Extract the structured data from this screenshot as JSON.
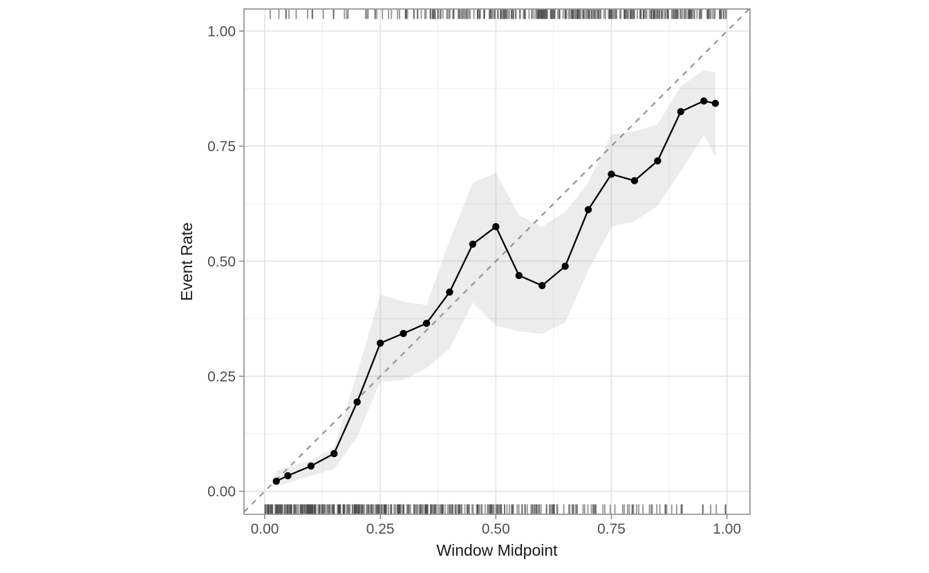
{
  "chart_data": {
    "type": "line",
    "title": "",
    "xlabel": "Window Midpoint",
    "ylabel": "Event Rate",
    "x_tick_values": [
      0.0,
      0.25,
      0.5,
      0.75,
      1.0
    ],
    "x_tick_labels": [
      "0.00",
      "0.25",
      "0.50",
      "0.75",
      "1.00"
    ],
    "y_tick_values": [
      0.0,
      0.25,
      0.5,
      0.75,
      1.0
    ],
    "y_tick_labels": [
      "0.00",
      "0.25",
      "0.50",
      "0.75",
      "1.00"
    ],
    "x_minor_ticks": [
      0.125,
      0.375,
      0.625,
      0.875
    ],
    "y_minor_ticks": [
      0.125,
      0.375,
      0.625,
      0.875
    ],
    "xlim": [
      -0.045,
      1.05
    ],
    "ylim": [
      -0.05,
      1.048
    ],
    "grid": "major+minor",
    "legend": "none",
    "series": [
      {
        "name": "observed-event-rate",
        "type": "line+points",
        "x": [
          0.025,
          0.05,
          0.1,
          0.15,
          0.2,
          0.25,
          0.3,
          0.35,
          0.4,
          0.45,
          0.5,
          0.55,
          0.6,
          0.65,
          0.7,
          0.75,
          0.8,
          0.85,
          0.9,
          0.95,
          0.975
        ],
        "y": [
          0.022,
          0.034,
          0.055,
          0.082,
          0.194,
          0.322,
          0.343,
          0.365,
          0.433,
          0.537,
          0.575,
          0.469,
          0.447,
          0.489,
          0.612,
          0.689,
          0.675,
          0.718,
          0.825,
          0.848,
          0.843
        ]
      },
      {
        "name": "confidence-band",
        "type": "ribbon",
        "x": [
          0.025,
          0.05,
          0.1,
          0.15,
          0.2,
          0.25,
          0.3,
          0.35,
          0.4,
          0.45,
          0.5,
          0.55,
          0.6,
          0.65,
          0.7,
          0.75,
          0.8,
          0.85,
          0.9,
          0.95,
          0.975
        ],
        "lower": [
          0.01,
          0.018,
          0.034,
          0.048,
          0.118,
          0.238,
          0.242,
          0.268,
          0.31,
          0.41,
          0.36,
          0.348,
          0.342,
          0.367,
          0.48,
          0.575,
          0.587,
          0.62,
          0.695,
          0.775,
          0.727
        ],
        "upper": [
          0.045,
          0.052,
          0.068,
          0.096,
          0.256,
          0.428,
          0.412,
          0.405,
          0.545,
          0.67,
          0.692,
          0.6,
          0.575,
          0.607,
          0.67,
          0.775,
          0.782,
          0.797,
          0.88,
          0.915,
          0.91
        ]
      },
      {
        "name": "identity-line",
        "type": "dashed-diagonal",
        "equation": "y = x"
      }
    ],
    "rug_top": {
      "name": "event-rug",
      "seed": 7,
      "segments": [
        {
          "from": 0.0,
          "to": 0.05,
          "n": 4
        },
        {
          "from": 0.05,
          "to": 0.1,
          "n": 3
        },
        {
          "from": 0.1,
          "to": 0.15,
          "n": 5
        },
        {
          "from": 0.15,
          "to": 0.2,
          "n": 3
        },
        {
          "from": 0.2,
          "to": 0.25,
          "n": 6
        },
        {
          "from": 0.25,
          "to": 0.3,
          "n": 5
        },
        {
          "from": 0.3,
          "to": 0.35,
          "n": 12
        },
        {
          "from": 0.35,
          "to": 0.4,
          "n": 16
        },
        {
          "from": 0.4,
          "to": 0.45,
          "n": 16
        },
        {
          "from": 0.45,
          "to": 0.5,
          "n": 18
        },
        {
          "from": 0.5,
          "to": 0.55,
          "n": 22
        },
        {
          "from": 0.55,
          "to": 0.6,
          "n": 24
        },
        {
          "from": 0.6,
          "to": 0.65,
          "n": 26
        },
        {
          "from": 0.65,
          "to": 0.7,
          "n": 27
        },
        {
          "from": 0.7,
          "to": 0.75,
          "n": 25
        },
        {
          "from": 0.75,
          "to": 0.8,
          "n": 24
        },
        {
          "from": 0.8,
          "to": 0.85,
          "n": 24
        },
        {
          "from": 0.85,
          "to": 0.9,
          "n": 23
        },
        {
          "from": 0.9,
          "to": 0.95,
          "n": 21
        },
        {
          "from": 0.95,
          "to": 1.0,
          "n": 18
        }
      ]
    },
    "rug_bottom": {
      "name": "non-event-rug",
      "seed": 13,
      "segments": [
        {
          "from": 0.0,
          "to": 0.05,
          "n": 40
        },
        {
          "from": 0.05,
          "to": 0.1,
          "n": 38
        },
        {
          "from": 0.1,
          "to": 0.15,
          "n": 36
        },
        {
          "from": 0.15,
          "to": 0.2,
          "n": 34
        },
        {
          "from": 0.2,
          "to": 0.25,
          "n": 30
        },
        {
          "from": 0.25,
          "to": 0.3,
          "n": 28
        },
        {
          "from": 0.3,
          "to": 0.35,
          "n": 26
        },
        {
          "from": 0.35,
          "to": 0.4,
          "n": 24
        },
        {
          "from": 0.4,
          "to": 0.45,
          "n": 22
        },
        {
          "from": 0.45,
          "to": 0.5,
          "n": 20
        },
        {
          "from": 0.5,
          "to": 0.55,
          "n": 18
        },
        {
          "from": 0.55,
          "to": 0.6,
          "n": 16
        },
        {
          "from": 0.6,
          "to": 0.65,
          "n": 13
        },
        {
          "from": 0.65,
          "to": 0.7,
          "n": 11
        },
        {
          "from": 0.7,
          "to": 0.75,
          "n": 9
        },
        {
          "from": 0.75,
          "to": 0.8,
          "n": 8
        },
        {
          "from": 0.8,
          "to": 0.85,
          "n": 7
        },
        {
          "from": 0.85,
          "to": 0.9,
          "n": 6
        },
        {
          "from": 0.9,
          "to": 0.95,
          "n": 5
        },
        {
          "from": 0.95,
          "to": 1.0,
          "n": 4
        }
      ]
    },
    "style": {
      "line_color": "#000000",
      "point_color": "#000000",
      "ribbon_color": "#a8a8a8",
      "ribbon_opacity": 0.22,
      "diagonal_color": "#9a9a9a",
      "grid_major_color": "#e2e2e2",
      "grid_minor_color": "#efefef",
      "panel_border_color": "#8c8c8c",
      "tick_color": "#8c8c8c",
      "tick_label_color": "#4d4d4d",
      "title_color": "#1a1a1a",
      "rug_color": "#3f3f3f",
      "rug_opacity": 0.55,
      "background": "#ffffff"
    }
  }
}
